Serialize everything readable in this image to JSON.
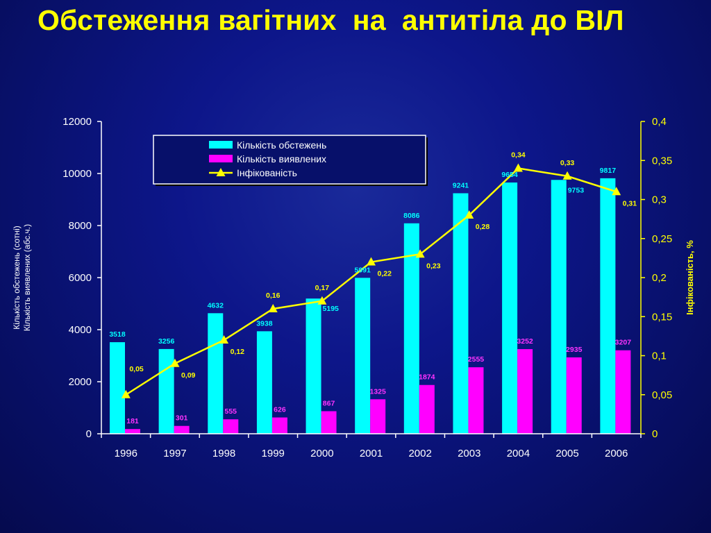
{
  "title": "Обстеження вагітних  на  антитіла до ВІЛ",
  "chart_data": {
    "type": "bar",
    "categories": [
      "1996",
      "1997",
      "1998",
      "1999",
      "2000",
      "2001",
      "2002",
      "2003",
      "2004",
      "2005",
      "2006"
    ],
    "series": [
      {
        "name": "Кількість обстежень",
        "kind": "bar",
        "axis": "left",
        "color": "#00ffff",
        "values": [
          3518,
          3256,
          4632,
          3938,
          5195,
          5991,
          8086,
          9241,
          9654,
          9753,
          9817
        ]
      },
      {
        "name": "Кількість виявлених",
        "kind": "bar",
        "axis": "left",
        "color": "#ff00ff",
        "values": [
          181,
          301,
          555,
          626,
          867,
          1325,
          1874,
          2555,
          3252,
          2935,
          3207
        ]
      },
      {
        "name": "Інфікованість",
        "kind": "line",
        "axis": "right",
        "color": "#ffff00",
        "marker": "triangle",
        "values": [
          0.05,
          0.09,
          0.12,
          0.16,
          0.17,
          0.22,
          0.23,
          0.28,
          0.34,
          0.33,
          0.31
        ],
        "labels": [
          "0,05",
          "0,09",
          "0,12",
          "0,16",
          "0,17",
          "0,22",
          "0,23",
          "0,28",
          "0,34",
          "0,33",
          "0,31"
        ]
      }
    ],
    "ylim_left": [
      0,
      12000
    ],
    "yticks_left": [
      "0",
      "2000",
      "4000",
      "6000",
      "8000",
      "10000",
      "12000"
    ],
    "ylim_right": [
      0,
      0.4
    ],
    "yticks_right": [
      "0",
      "0,05",
      "0,1",
      "0,15",
      "0,2",
      "0,25",
      "0,3",
      "0,35",
      "0,4"
    ],
    "ylabel_left": [
      "Кількість обстежень (сотні)",
      "Кількість виявлених (абс.ч.)"
    ],
    "ylabel_right": "Інфікованість, %",
    "legend_position": "top-left",
    "grid": false
  }
}
